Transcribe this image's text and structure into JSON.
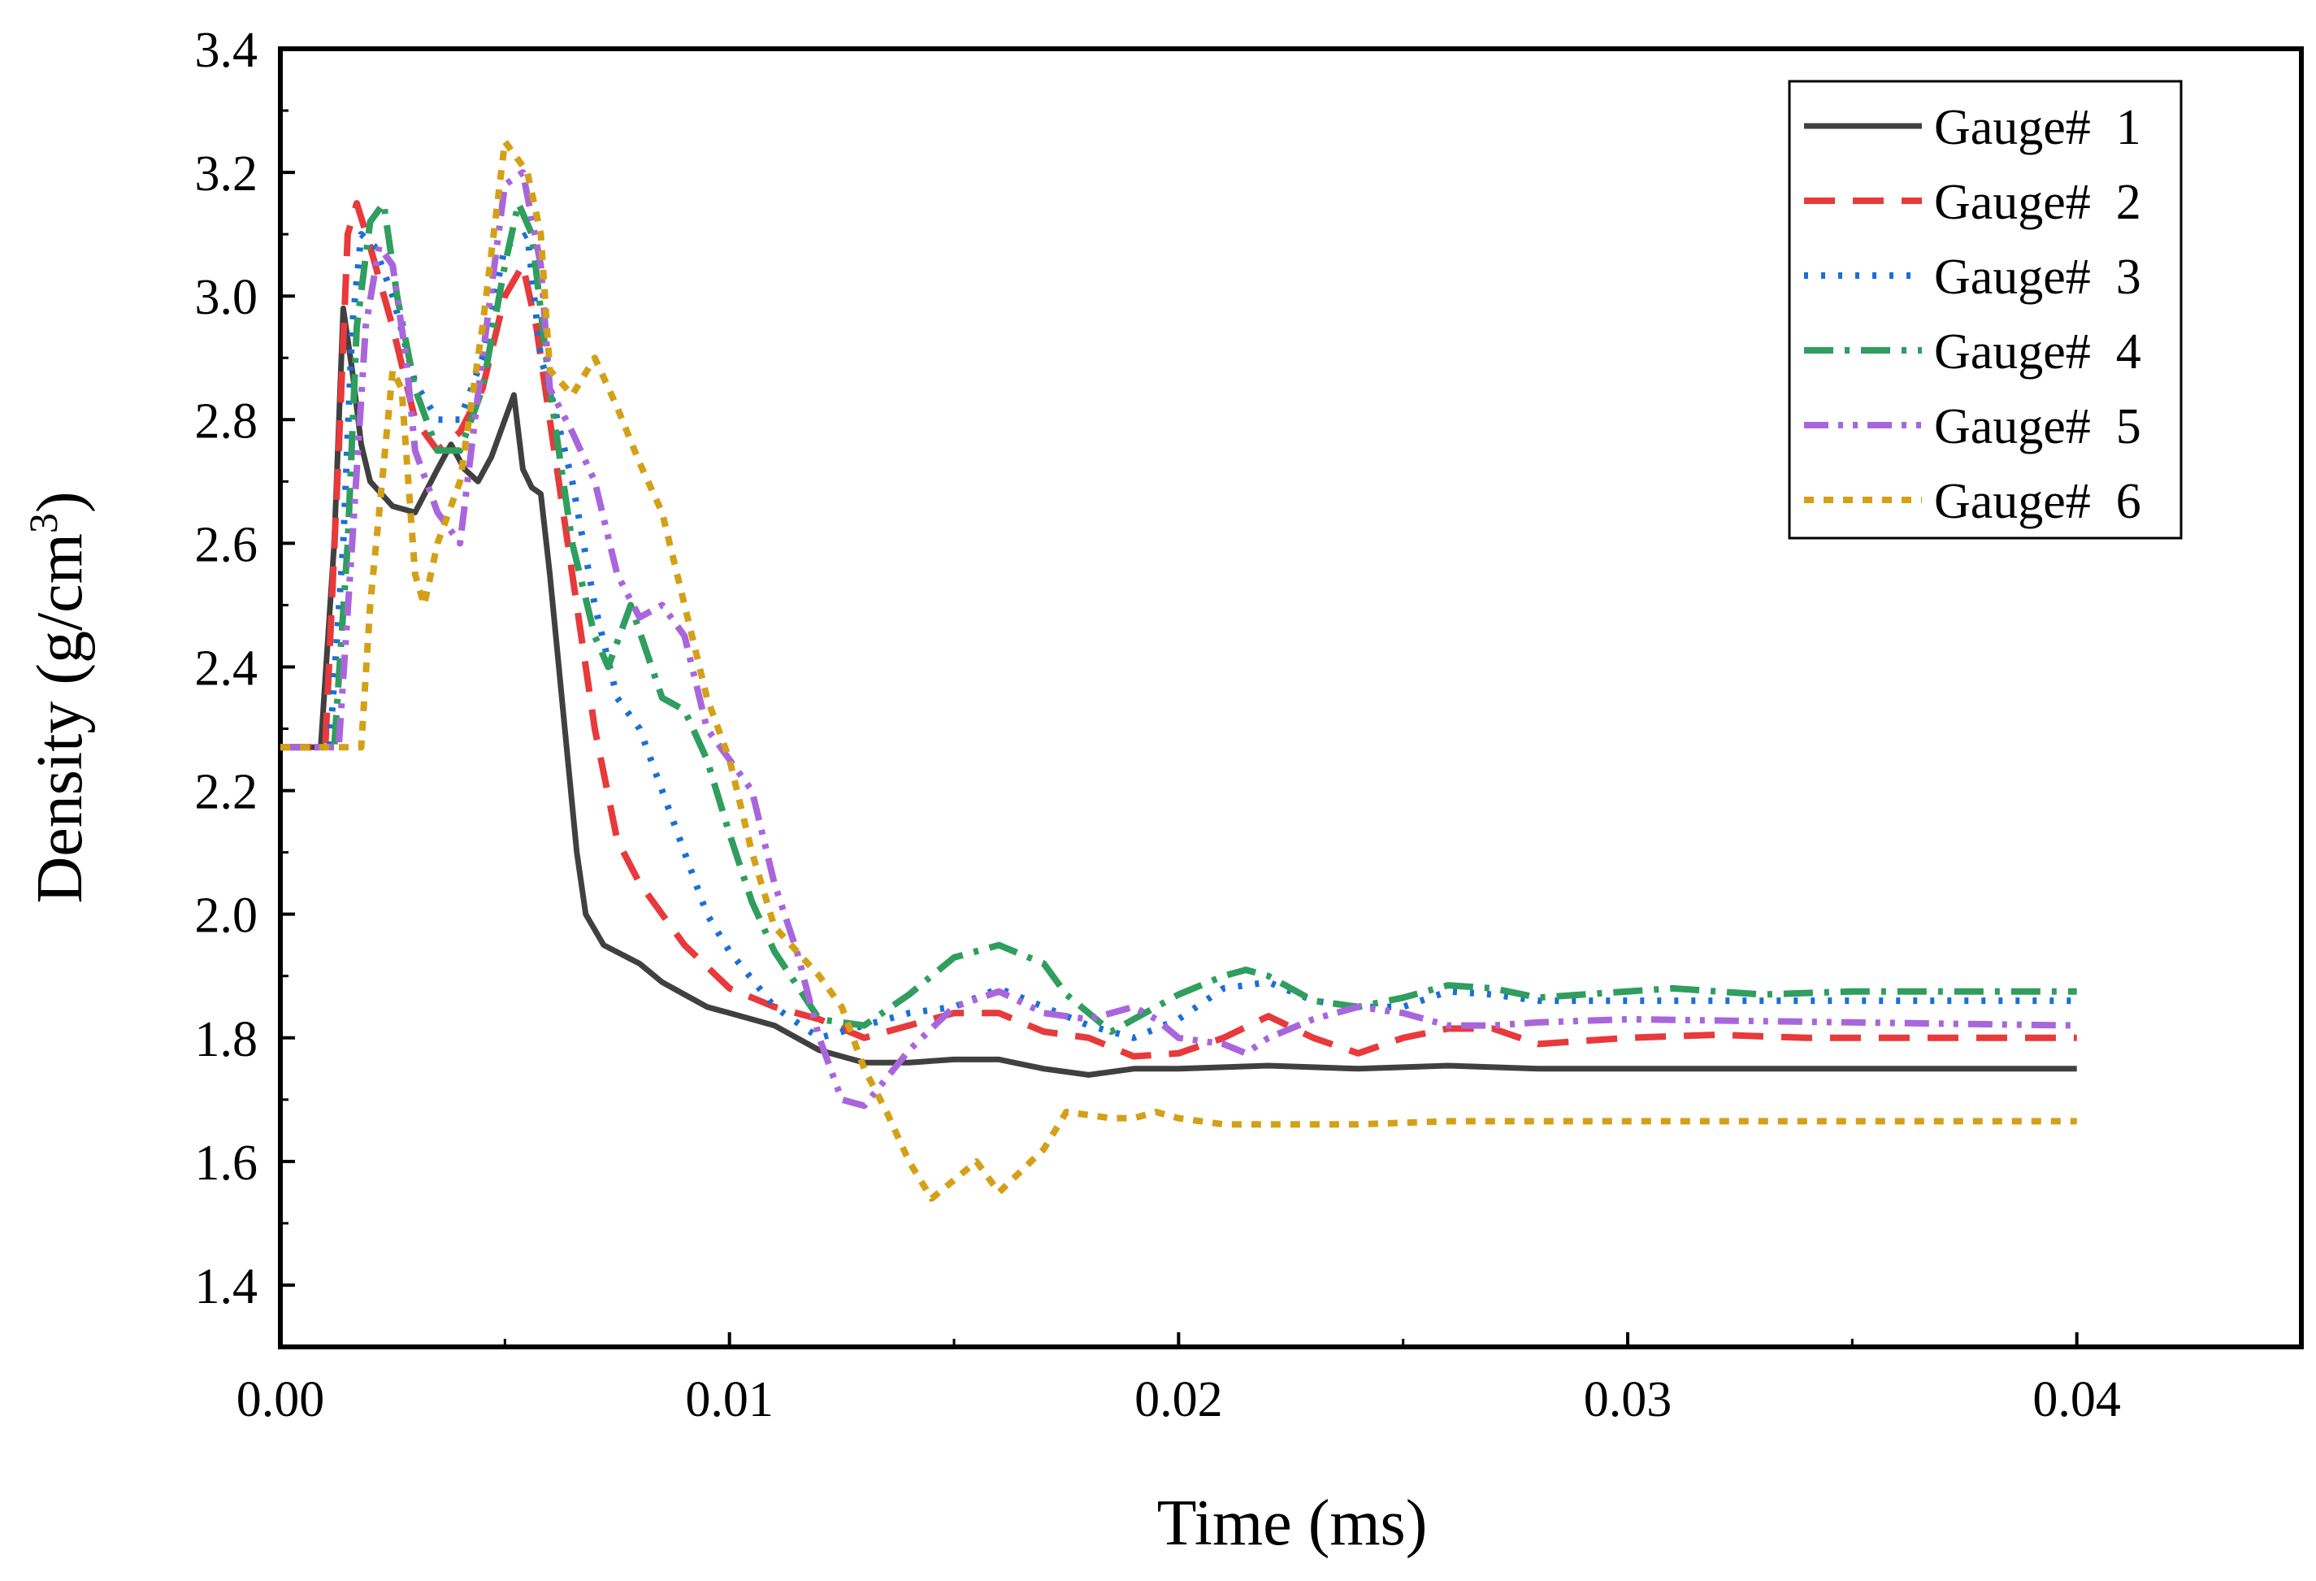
{
  "chart_data": {
    "type": "line",
    "title": "",
    "xlabel": "Time (ms)",
    "ylabel": "Density (g/cm",
    "ylabel_sup": "3",
    "ylabel_close": ")",
    "xlim": [
      0,
      0.045
    ],
    "ylim": [
      1.3,
      3.4
    ],
    "x_ticks": [
      0,
      0.01,
      0.02,
      0.03,
      0.04
    ],
    "x_tick_labels": [
      "0.00",
      "0.01",
      "0.02",
      "0.03",
      "0.04"
    ],
    "y_ticks": [
      1.4,
      1.6,
      1.8,
      2.0,
      2.2,
      2.4,
      2.6,
      2.8,
      3.0,
      3.2,
      3.4
    ],
    "y_tick_labels": [
      "1.4",
      "1.6",
      "1.8",
      "2.0",
      "2.2",
      "2.4",
      "2.6",
      "2.8",
      "3.0",
      "3.2",
      "3.4"
    ],
    "grid": false,
    "legend_position": "top-right",
    "series": [
      {
        "name": "Gauge#  1",
        "color": "#404040",
        "dash": "solid",
        "points": [
          [
            0,
            2.27
          ],
          [
            0.0009,
            2.27
          ],
          [
            0.0012,
            2.6
          ],
          [
            0.0014,
            2.98
          ],
          [
            0.0016,
            2.88
          ],
          [
            0.0018,
            2.76
          ],
          [
            0.002,
            2.7
          ],
          [
            0.0025,
            2.66
          ],
          [
            0.003,
            2.65
          ],
          [
            0.0035,
            2.72
          ],
          [
            0.0038,
            2.76
          ],
          [
            0.0041,
            2.72
          ],
          [
            0.0044,
            2.7
          ],
          [
            0.0047,
            2.74
          ],
          [
            0.005,
            2.8
          ],
          [
            0.0052,
            2.84
          ],
          [
            0.0054,
            2.72
          ],
          [
            0.0056,
            2.69
          ],
          [
            0.0058,
            2.68
          ],
          [
            0.006,
            2.55
          ],
          [
            0.0062,
            2.4
          ],
          [
            0.0064,
            2.25
          ],
          [
            0.0066,
            2.1
          ],
          [
            0.0068,
            2.0
          ],
          [
            0.0072,
            1.95
          ],
          [
            0.008,
            1.92
          ],
          [
            0.0085,
            1.89
          ],
          [
            0.009,
            1.87
          ],
          [
            0.0095,
            1.85
          ],
          [
            0.01,
            1.84
          ],
          [
            0.011,
            1.82
          ],
          [
            0.012,
            1.78
          ],
          [
            0.013,
            1.76
          ],
          [
            0.014,
            1.76
          ],
          [
            0.015,
            1.765
          ],
          [
            0.016,
            1.765
          ],
          [
            0.017,
            1.75
          ],
          [
            0.018,
            1.74
          ],
          [
            0.019,
            1.75
          ],
          [
            0.02,
            1.75
          ],
          [
            0.022,
            1.755
          ],
          [
            0.024,
            1.75
          ],
          [
            0.026,
            1.755
          ],
          [
            0.028,
            1.75
          ],
          [
            0.03,
            1.75
          ],
          [
            0.035,
            1.75
          ],
          [
            0.04,
            1.75
          ]
        ]
      },
      {
        "name": "Gauge#  2",
        "color": "#e8393b",
        "dash": "dash",
        "points": [
          [
            0,
            2.27
          ],
          [
            0.001,
            2.27
          ],
          [
            0.0013,
            2.75
          ],
          [
            0.0015,
            3.1
          ],
          [
            0.0017,
            3.15
          ],
          [
            0.002,
            3.08
          ],
          [
            0.0025,
            2.95
          ],
          [
            0.003,
            2.8
          ],
          [
            0.0035,
            2.75
          ],
          [
            0.004,
            2.78
          ],
          [
            0.0045,
            2.85
          ],
          [
            0.005,
            3.0
          ],
          [
            0.0054,
            3.05
          ],
          [
            0.0057,
            2.95
          ],
          [
            0.006,
            2.8
          ],
          [
            0.0065,
            2.55
          ],
          [
            0.007,
            2.3
          ],
          [
            0.0075,
            2.12
          ],
          [
            0.008,
            2.05
          ],
          [
            0.009,
            1.95
          ],
          [
            0.01,
            1.88
          ],
          [
            0.011,
            1.85
          ],
          [
            0.012,
            1.83
          ],
          [
            0.013,
            1.8
          ],
          [
            0.014,
            1.82
          ],
          [
            0.015,
            1.84
          ],
          [
            0.016,
            1.84
          ],
          [
            0.017,
            1.81
          ],
          [
            0.018,
            1.8
          ],
          [
            0.019,
            1.77
          ],
          [
            0.02,
            1.775
          ],
          [
            0.021,
            1.8
          ],
          [
            0.022,
            1.835
          ],
          [
            0.023,
            1.8
          ],
          [
            0.024,
            1.775
          ],
          [
            0.025,
            1.8
          ],
          [
            0.026,
            1.815
          ],
          [
            0.027,
            1.815
          ],
          [
            0.028,
            1.79
          ],
          [
            0.03,
            1.8
          ],
          [
            0.032,
            1.805
          ],
          [
            0.034,
            1.8
          ],
          [
            0.036,
            1.8
          ],
          [
            0.04,
            1.8
          ]
        ]
      },
      {
        "name": "Gauge#  3",
        "color": "#1c6fd6",
        "dash": "dot",
        "points": [
          [
            0,
            2.27
          ],
          [
            0.0011,
            2.27
          ],
          [
            0.0014,
            2.6
          ],
          [
            0.0016,
            2.95
          ],
          [
            0.0018,
            3.1
          ],
          [
            0.0021,
            3.08
          ],
          [
            0.0025,
            3.0
          ],
          [
            0.003,
            2.86
          ],
          [
            0.0035,
            2.8
          ],
          [
            0.004,
            2.8
          ],
          [
            0.0045,
            2.9
          ],
          [
            0.005,
            3.08
          ],
          [
            0.0055,
            3.1
          ],
          [
            0.0058,
            2.9
          ],
          [
            0.006,
            2.85
          ],
          [
            0.0065,
            2.7
          ],
          [
            0.007,
            2.5
          ],
          [
            0.0075,
            2.35
          ],
          [
            0.008,
            2.3
          ],
          [
            0.0085,
            2.2
          ],
          [
            0.009,
            2.1
          ],
          [
            0.0095,
            2.0
          ],
          [
            0.01,
            1.94
          ],
          [
            0.011,
            1.85
          ],
          [
            0.012,
            1.8
          ],
          [
            0.013,
            1.82
          ],
          [
            0.014,
            1.84
          ],
          [
            0.015,
            1.85
          ],
          [
            0.016,
            1.88
          ],
          [
            0.017,
            1.85
          ],
          [
            0.018,
            1.82
          ],
          [
            0.019,
            1.8
          ],
          [
            0.02,
            1.83
          ],
          [
            0.021,
            1.88
          ],
          [
            0.022,
            1.89
          ],
          [
            0.023,
            1.86
          ],
          [
            0.024,
            1.85
          ],
          [
            0.025,
            1.85
          ],
          [
            0.026,
            1.875
          ],
          [
            0.027,
            1.87
          ],
          [
            0.028,
            1.86
          ],
          [
            0.03,
            1.86
          ],
          [
            0.035,
            1.86
          ],
          [
            0.04,
            1.86
          ]
        ]
      },
      {
        "name": "Gauge#  4",
        "color": "#2f9e5e",
        "dash": "dashdot",
        "points": [
          [
            0,
            2.27
          ],
          [
            0.0012,
            2.27
          ],
          [
            0.0015,
            2.6
          ],
          [
            0.0017,
            2.95
          ],
          [
            0.002,
            3.12
          ],
          [
            0.0023,
            3.15
          ],
          [
            0.0026,
            3.0
          ],
          [
            0.003,
            2.85
          ],
          [
            0.0035,
            2.75
          ],
          [
            0.004,
            2.75
          ],
          [
            0.0045,
            2.85
          ],
          [
            0.005,
            3.05
          ],
          [
            0.0053,
            3.15
          ],
          [
            0.0056,
            3.1
          ],
          [
            0.006,
            2.85
          ],
          [
            0.0065,
            2.6
          ],
          [
            0.007,
            2.45
          ],
          [
            0.0073,
            2.4
          ],
          [
            0.0078,
            2.5
          ],
          [
            0.0085,
            2.35
          ],
          [
            0.009,
            2.33
          ],
          [
            0.0095,
            2.25
          ],
          [
            0.01,
            2.13
          ],
          [
            0.0105,
            2.02
          ],
          [
            0.011,
            1.94
          ],
          [
            0.012,
            1.83
          ],
          [
            0.013,
            1.82
          ],
          [
            0.014,
            1.87
          ],
          [
            0.015,
            1.93
          ],
          [
            0.016,
            1.95
          ],
          [
            0.017,
            1.92
          ],
          [
            0.0175,
            1.87
          ],
          [
            0.0185,
            1.81
          ],
          [
            0.019,
            1.83
          ],
          [
            0.02,
            1.87
          ],
          [
            0.021,
            1.9
          ],
          [
            0.0215,
            1.91
          ],
          [
            0.022,
            1.9
          ],
          [
            0.023,
            1.86
          ],
          [
            0.024,
            1.85
          ],
          [
            0.025,
            1.865
          ],
          [
            0.026,
            1.885
          ],
          [
            0.027,
            1.88
          ],
          [
            0.028,
            1.865
          ],
          [
            0.029,
            1.87
          ],
          [
            0.03,
            1.875
          ],
          [
            0.031,
            1.88
          ],
          [
            0.033,
            1.87
          ],
          [
            0.035,
            1.875
          ],
          [
            0.037,
            1.875
          ],
          [
            0.04,
            1.875
          ]
        ]
      },
      {
        "name": "Gauge#  5",
        "color": "#a966dc",
        "dash": "dashdotdot",
        "points": [
          [
            0,
            2.27
          ],
          [
            0.0013,
            2.27
          ],
          [
            0.0016,
            2.6
          ],
          [
            0.0019,
            2.95
          ],
          [
            0.0022,
            3.08
          ],
          [
            0.0025,
            3.05
          ],
          [
            0.0028,
            2.9
          ],
          [
            0.003,
            2.75
          ],
          [
            0.0035,
            2.65
          ],
          [
            0.004,
            2.6
          ],
          [
            0.0045,
            2.9
          ],
          [
            0.005,
            3.18
          ],
          [
            0.0054,
            3.2
          ],
          [
            0.0058,
            3.05
          ],
          [
            0.006,
            2.85
          ],
          [
            0.0065,
            2.78
          ],
          [
            0.007,
            2.7
          ],
          [
            0.0075,
            2.55
          ],
          [
            0.008,
            2.48
          ],
          [
            0.0085,
            2.5
          ],
          [
            0.009,
            2.45
          ],
          [
            0.0095,
            2.3
          ],
          [
            0.01,
            2.25
          ],
          [
            0.0105,
            2.2
          ],
          [
            0.011,
            2.05
          ],
          [
            0.0115,
            1.94
          ],
          [
            0.012,
            1.8
          ],
          [
            0.0125,
            1.7
          ],
          [
            0.013,
            1.69
          ],
          [
            0.014,
            1.78
          ],
          [
            0.015,
            1.85
          ],
          [
            0.016,
            1.875
          ],
          [
            0.017,
            1.84
          ],
          [
            0.018,
            1.83
          ],
          [
            0.019,
            1.85
          ],
          [
            0.0195,
            1.83
          ],
          [
            0.02,
            1.8
          ],
          [
            0.021,
            1.79
          ],
          [
            0.0215,
            1.775
          ],
          [
            0.022,
            1.8
          ],
          [
            0.023,
            1.83
          ],
          [
            0.024,
            1.85
          ],
          [
            0.025,
            1.84
          ],
          [
            0.026,
            1.82
          ],
          [
            0.027,
            1.82
          ],
          [
            0.028,
            1.825
          ],
          [
            0.03,
            1.83
          ],
          [
            0.035,
            1.825
          ],
          [
            0.04,
            1.82
          ]
        ]
      },
      {
        "name": "Gauge#  6",
        "color": "#d4a017",
        "dash": "shortdot",
        "points": [
          [
            0,
            2.27
          ],
          [
            0.0018,
            2.27
          ],
          [
            0.002,
            2.5
          ],
          [
            0.0022,
            2.65
          ],
          [
            0.0025,
            2.88
          ],
          [
            0.0027,
            2.85
          ],
          [
            0.003,
            2.55
          ],
          [
            0.0032,
            2.5
          ],
          [
            0.0035,
            2.6
          ],
          [
            0.004,
            2.7
          ],
          [
            0.0045,
            2.95
          ],
          [
            0.005,
            3.25
          ],
          [
            0.0055,
            3.2
          ],
          [
            0.0058,
            3.1
          ],
          [
            0.006,
            2.88
          ],
          [
            0.0065,
            2.84
          ],
          [
            0.007,
            2.9
          ],
          [
            0.0075,
            2.82
          ],
          [
            0.008,
            2.73
          ],
          [
            0.0085,
            2.65
          ],
          [
            0.009,
            2.5
          ],
          [
            0.0095,
            2.35
          ],
          [
            0.01,
            2.25
          ],
          [
            0.0105,
            2.1
          ],
          [
            0.011,
            1.98
          ],
          [
            0.012,
            1.9
          ],
          [
            0.0125,
            1.85
          ],
          [
            0.013,
            1.75
          ],
          [
            0.0135,
            1.68
          ],
          [
            0.014,
            1.6
          ],
          [
            0.0145,
            1.54
          ],
          [
            0.0155,
            1.6
          ],
          [
            0.016,
            1.55
          ],
          [
            0.017,
            1.62
          ],
          [
            0.0175,
            1.68
          ],
          [
            0.0185,
            1.67
          ],
          [
            0.019,
            1.67
          ],
          [
            0.0195,
            1.68
          ],
          [
            0.02,
            1.67
          ],
          [
            0.021,
            1.66
          ],
          [
            0.022,
            1.66
          ],
          [
            0.024,
            1.66
          ],
          [
            0.026,
            1.665
          ],
          [
            0.028,
            1.665
          ],
          [
            0.03,
            1.665
          ],
          [
            0.035,
            1.665
          ],
          [
            0.04,
            1.665
          ]
        ]
      }
    ]
  }
}
